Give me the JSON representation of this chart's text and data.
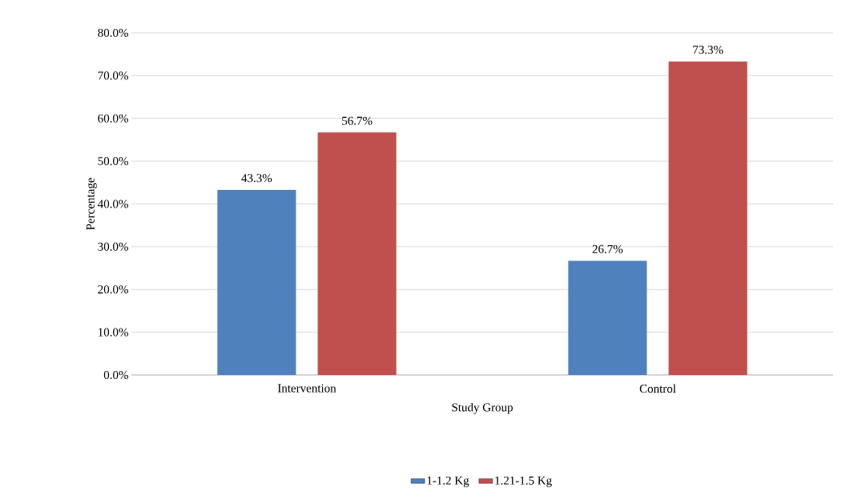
{
  "chart_data": {
    "type": "bar",
    "xlabel": "Study Group",
    "ylabel": "Percentage",
    "categories": [
      "Intervention",
      "Control"
    ],
    "series": [
      {
        "name": "1-1.2 Kg",
        "color": "#4f81bd",
        "values": [
          43.3,
          26.7
        ],
        "value_labels": [
          "43.3%",
          "26.7%"
        ]
      },
      {
        "name": "1.21-1.5 Kg",
        "color": "#c0504d",
        "values": [
          56.7,
          73.3
        ],
        "value_labels": [
          "56.7%",
          "73.3%"
        ]
      }
    ],
    "ylim": [
      0,
      80
    ],
    "yticks": [
      {
        "value": 0,
        "label": "0.0%"
      },
      {
        "value": 10,
        "label": "10.0%"
      },
      {
        "value": 20,
        "label": "20.0%"
      },
      {
        "value": 30,
        "label": "30.0%"
      },
      {
        "value": 40,
        "label": "40.0%"
      },
      {
        "value": 50,
        "label": "50.0%"
      },
      {
        "value": 60,
        "label": "60.0%"
      },
      {
        "value": 70,
        "label": "70.0%"
      },
      {
        "value": 80,
        "label": "80.0%"
      }
    ],
    "grid": "y",
    "legend": "bottom"
  }
}
